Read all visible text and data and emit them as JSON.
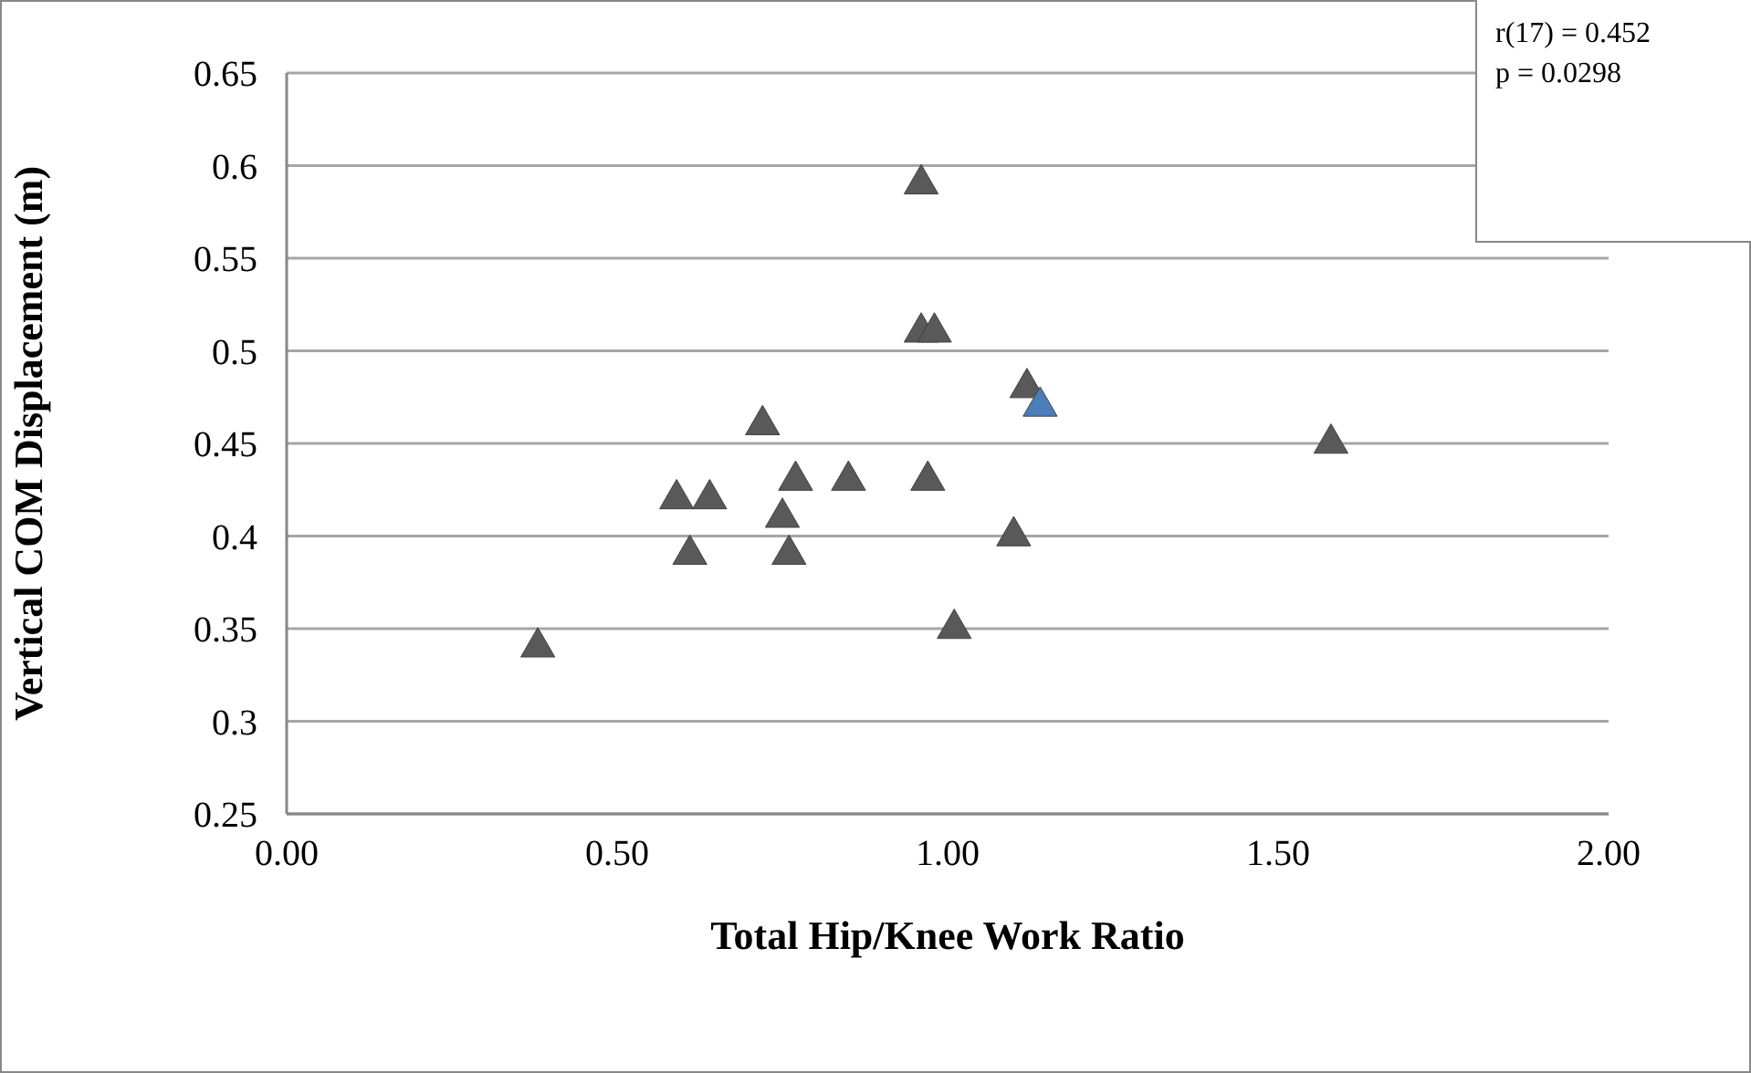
{
  "chart_data": {
    "type": "scatter",
    "xlabel": "Total Hip/Knee Work Ratio",
    "ylabel": "Vertical COM Displacement (m)",
    "annotations": [
      "r(17) = 0.452",
      "p = 0.0298"
    ],
    "x": [
      0.38,
      0.59,
      0.64,
      0.61,
      0.72,
      0.75,
      0.76,
      0.77,
      0.85,
      0.97,
      0.96,
      0.98,
      1.01,
      0.96,
      1.12,
      1.14,
      1.58,
      1.1
    ],
    "values": [
      0.34,
      0.42,
      0.42,
      0.39,
      0.46,
      0.41,
      0.39,
      0.43,
      0.43,
      0.43,
      0.51,
      0.51,
      0.35,
      0.59,
      0.48,
      0.47,
      0.45,
      0.4
    ],
    "colors": [
      "#595959",
      "#595959",
      "#595959",
      "#595959",
      "#595959",
      "#595959",
      "#595959",
      "#595959",
      "#595959",
      "#595959",
      "#595959",
      "#595959",
      "#595959",
      "#595959",
      "#595959",
      "#4a7ebb",
      "#595959",
      "#595959"
    ],
    "marker": "triangle",
    "xlim": [
      0,
      2
    ],
    "xticks": [
      {
        "value": 0,
        "label": "0.00"
      },
      {
        "value": 0.5,
        "label": "0.50"
      },
      {
        "value": 1,
        "label": "1.00"
      },
      {
        "value": 1.5,
        "label": "1.50"
      },
      {
        "value": 2,
        "label": "2.00"
      }
    ],
    "ylim": [
      0.25,
      0.65
    ],
    "yticks": [
      0.25,
      0.3,
      0.35,
      0.4,
      0.45,
      0.5,
      0.55,
      0.6,
      0.65
    ],
    "grid": "y"
  }
}
